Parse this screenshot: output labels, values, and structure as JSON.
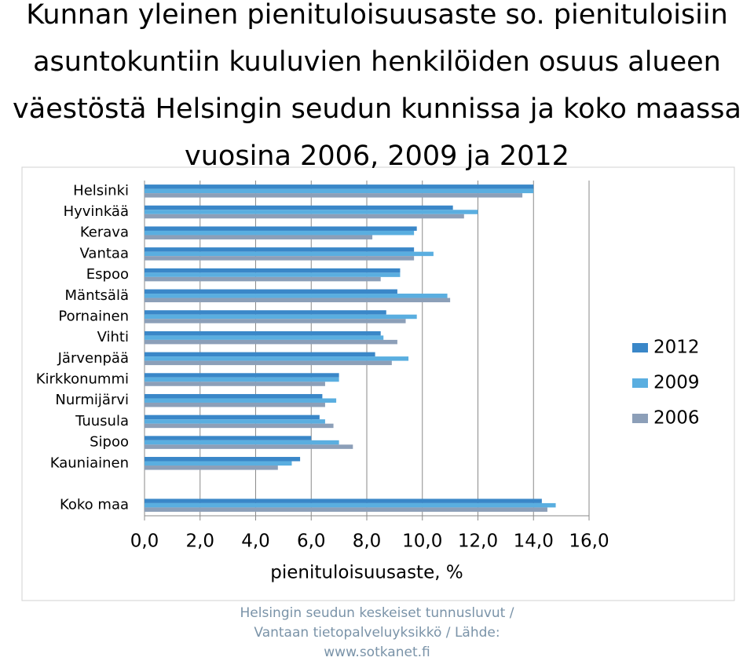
{
  "chart_data": {
    "type": "hbar",
    "title": [
      "Kunnan yleinen pienituloisuusaste so. pienituloisiin",
      "asuntokuntiin kuuluvien henkilöiden osuus alueen",
      "väestöstä Helsingin seudun kunnissa ja koko maassa",
      "vuosina 2006, 2009 ja 2012"
    ],
    "categories": [
      "Helsinki",
      "Hyvinkää",
      "Kerava",
      "Vantaa",
      "Espoo",
      "Mäntsälä",
      "Pornainen",
      "Vihti",
      "Järvenpää",
      "Kirkkonummi",
      "Nurmijärvi",
      "Tuusula",
      "Sipoo",
      "Kauniainen",
      null,
      "Koko maa"
    ],
    "series": [
      {
        "name": "2012",
        "color": "#3a87c8",
        "values": [
          14.0,
          11.1,
          9.8,
          9.7,
          9.2,
          9.1,
          8.7,
          8.5,
          8.3,
          7.0,
          6.4,
          6.3,
          6.0,
          5.6,
          null,
          14.3
        ]
      },
      {
        "name": "2009",
        "color": "#5aaee0",
        "values": [
          14.0,
          12.0,
          9.7,
          10.4,
          9.2,
          10.9,
          9.8,
          8.6,
          9.5,
          7.0,
          6.9,
          6.5,
          7.0,
          5.3,
          null,
          14.8
        ]
      },
      {
        "name": "2006",
        "color": "#8c9fb8",
        "values": [
          13.6,
          11.5,
          8.2,
          9.7,
          8.5,
          11.0,
          9.4,
          9.1,
          8.9,
          6.5,
          6.5,
          6.8,
          7.5,
          4.8,
          null,
          14.5
        ]
      }
    ],
    "xlabel": "pienituloisuusaste, %",
    "xlim": [
      0,
      16
    ],
    "xticks": [
      {
        "value": 0,
        "label": "0,0"
      },
      {
        "value": 2,
        "label": "2,0"
      },
      {
        "value": 4,
        "label": "4,0"
      },
      {
        "value": 6,
        "label": "6,0"
      },
      {
        "value": 8,
        "label": "8,0"
      },
      {
        "value": 10,
        "label": "10,0"
      },
      {
        "value": 12,
        "label": "12,0"
      },
      {
        "value": 14,
        "label": "14,0"
      },
      {
        "value": 16,
        "label": "16,0"
      }
    ],
    "grid": true,
    "legend": "right",
    "source": [
      "Helsingin seudun keskeiset tunnusluvut /",
      "Vantaan tietopalveluyksikkö / Lähde:",
      "www.sotkanet.fi"
    ]
  }
}
